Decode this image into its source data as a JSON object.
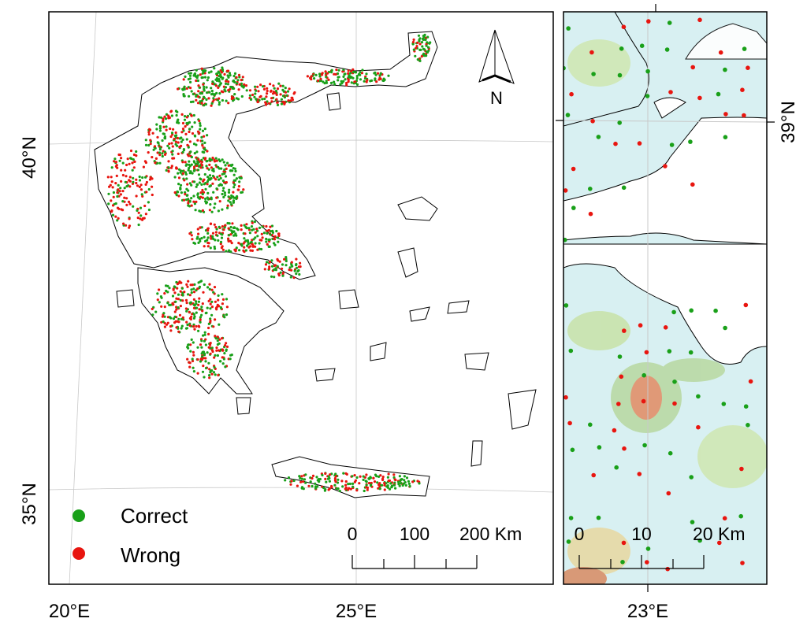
{
  "main_map": {
    "lat_labels": [
      "40°N",
      "35°N"
    ],
    "lon_labels": [
      "20°E",
      "25°E"
    ],
    "north_arrow": "N",
    "legend": [
      {
        "label": "Correct",
        "color": "#19a019"
      },
      {
        "label": "Wrong",
        "color": "#e8150f"
      }
    ],
    "scale_bar": [
      "0",
      "100",
      "200 Km"
    ]
  },
  "inset_map": {
    "lat_labels": [
      "39°N"
    ],
    "lon_labels": [
      "23°E"
    ],
    "scale_bar": [
      "0",
      "10",
      "20 Km"
    ]
  }
}
